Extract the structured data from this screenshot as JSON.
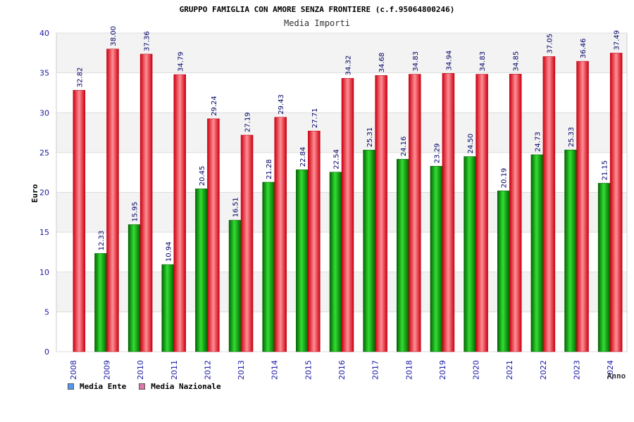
{
  "chart_data": {
    "type": "bar",
    "title": "GRUPPO FAMIGLIA CON AMORE SENZA FRONTIERE (c.f.95064800246)",
    "subtitle": "Media Importi",
    "xlabel": "Anno",
    "ylabel": "Euro",
    "ylim": [
      0,
      40
    ],
    "yticks": [
      "0",
      "5",
      "10",
      "15",
      "20",
      "25",
      "30",
      "35",
      "40"
    ],
    "grid": true,
    "legend_position": "bottom-left",
    "categories": [
      "2008",
      "2009",
      "2010",
      "2011",
      "2012",
      "2013",
      "2014",
      "2015",
      "2016",
      "2017",
      "2018",
      "2019",
      "2020",
      "2021",
      "2022",
      "2023",
      "2024"
    ],
    "series": [
      {
        "name": "Media Ente",
        "color": "#00b000",
        "swatch_color": "#5599ee",
        "values": [
          null,
          12.33,
          15.95,
          10.94,
          20.45,
          16.51,
          21.28,
          22.84,
          22.54,
          25.31,
          24.16,
          23.29,
          24.5,
          20.19,
          24.73,
          25.33,
          21.15
        ],
        "labels": [
          "",
          "12.33",
          "15.95",
          "10.94",
          "20.45",
          "16.51",
          "21.28",
          "22.84",
          "22.54",
          "25.31",
          "24.16",
          "23.29",
          "24.50",
          "20.19",
          "24.73",
          "25.33",
          "21.15"
        ]
      },
      {
        "name": "Media Nazionale",
        "color": "#e8202a",
        "swatch_color": "#dd77aa",
        "values": [
          32.82,
          38.0,
          37.36,
          34.79,
          29.24,
          27.19,
          29.43,
          27.71,
          34.32,
          34.68,
          34.83,
          34.94,
          34.83,
          34.85,
          37.05,
          36.46,
          37.49
        ],
        "labels": [
          "32.82",
          "38.00",
          "37.36",
          "34.79",
          "29.24",
          "27.19",
          "29.43",
          "27.71",
          "34.32",
          "34.68",
          "34.83",
          "34.94",
          "34.83",
          "34.85",
          "37.05",
          "36.46",
          "37.49"
        ]
      }
    ]
  }
}
